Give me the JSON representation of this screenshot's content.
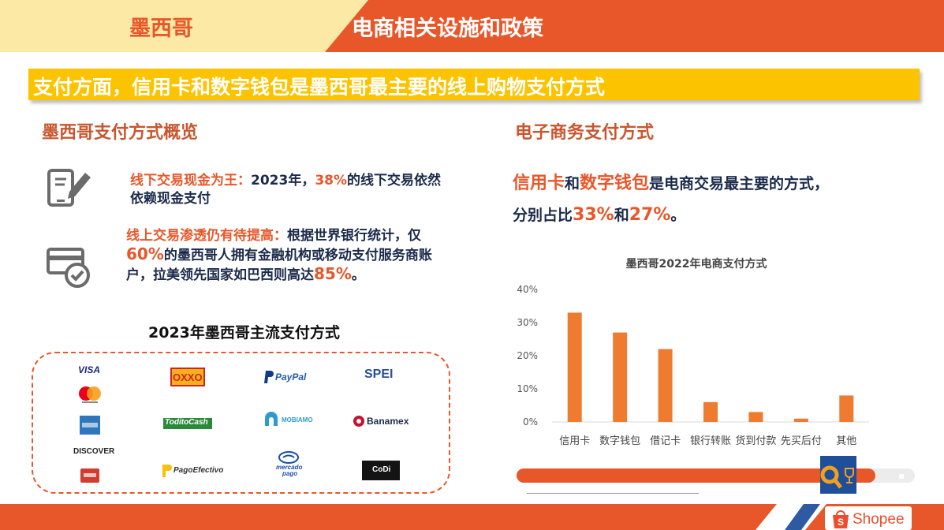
{
  "header": {
    "country": "墨西哥",
    "title": "电商相关设施和政策"
  },
  "banner": {
    "text": "支付方面，信用卡和数字钱包是墨西哥最主要的线上购物支付方式"
  },
  "left": {
    "title": "墨西哥支付方式概览",
    "item1": {
      "icon": "tablet-pen-icon",
      "lead": "线下交易现金为王：",
      "t1": "2023年，",
      "pct": "38%",
      "t2": "的线下交易依然依赖现金支付"
    },
    "item2": {
      "icon": "card-check-icon",
      "lead": "线上交易渗透仍有待提高：",
      "t1": "根据世界银行统计，仅",
      "pct": "60%",
      "t2": "的墨西哥人拥有金融机构或移动支付服务商账户，拉美领先国家如巴西则高达",
      "pct2": "85%",
      "t3": "。"
    },
    "logos_title": "2023年墨西哥主流支付方式",
    "logos": {
      "visa": "VISA",
      "oxxo": "OXXO",
      "paypal": "PayPal",
      "spei": "SPEI",
      "todito": "ToditoCash",
      "mobiamo": "MOBIAMO",
      "banamex": "Banamex",
      "discover": "DISCOVER",
      "pagoefectivo": "PagoEfectivo",
      "mercado1": "mercado",
      "mercado2": "pago",
      "codi": "CoDi"
    }
  },
  "right": {
    "title": "电子商务支付方式",
    "l1_a": "信用卡",
    "l1_b": "和",
    "l1_c": "数字钱包",
    "l1_d": "是电商交易最主要的方式，",
    "l2_a": "分别占比",
    "l2_b": "33%",
    "l2_c": "和",
    "l2_d": "27%",
    "l2_e": "。"
  },
  "chart_data": {
    "type": "bar",
    "title": "墨西哥2022年电商支付方式",
    "categories": [
      "信用卡",
      "数字钱包",
      "借记卡",
      "银行转账",
      "货到付款",
      "先买后付",
      "其他"
    ],
    "values": [
      33,
      27,
      22,
      6,
      3,
      1,
      8
    ],
    "ylim": [
      0,
      40
    ],
    "yticks": [
      "0%",
      "10%",
      "20%",
      "30%",
      "40%"
    ],
    "bar_color": "#ee7b30",
    "grid": false
  },
  "progress": {
    "value": 0.9
  },
  "footer": {
    "brand": "Shopee",
    "brand_color": "#ee4d2d"
  },
  "colors": {
    "accent": "#e8572a",
    "banner": "#fcc300",
    "header_left": "#fce9a6",
    "text_dark": "#1b2a4a"
  }
}
